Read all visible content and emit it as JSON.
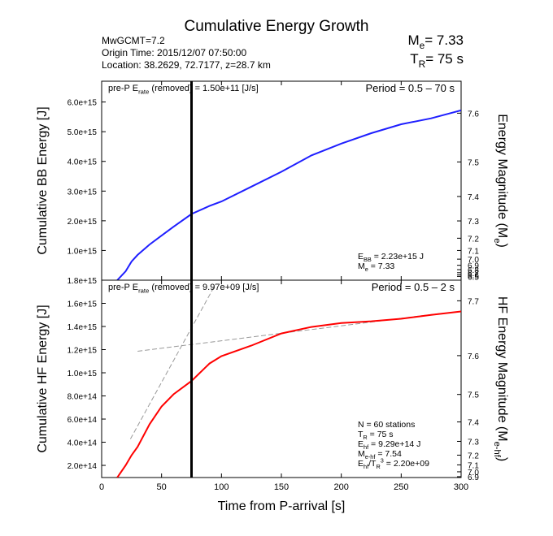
{
  "header": {
    "title": "Cumulative Energy Growth",
    "lines": [
      "MwGCMT=7.2",
      "Origin Time: 2015/12/07 07:50:00",
      "Location: 38.2629, 72.7177, z=28.7 km"
    ],
    "me": [
      {
        "text": "M"
      },
      {
        "text": "e",
        "shift": "sub"
      },
      {
        "text": "= 7.33"
      }
    ],
    "tr": [
      {
        "text": "T"
      },
      {
        "text": "R",
        "shift": "sub"
      },
      {
        "text": "= 75 s"
      }
    ]
  },
  "chart_data": [
    {
      "type": "line",
      "ylabel": [
        {
          "text": "Cumulative BB Energy [J]"
        }
      ],
      "y2label": [
        {
          "text": "Energy Magnitude (M"
        },
        {
          "text": "e",
          "shift": "sub"
        },
        {
          "text": ")"
        }
      ],
      "xlim": [
        0,
        300
      ],
      "ylim": [
        0,
        6700000000000000.0
      ],
      "yticks": [
        {
          "value": 1000000000000000.0,
          "label": "1.0e+15"
        },
        {
          "value": 2000000000000000.0,
          "label": "2.0e+15"
        },
        {
          "value": 3000000000000000.0,
          "label": "3.0e+15"
        },
        {
          "value": 4000000000000000.0,
          "label": "4.0e+15"
        },
        {
          "value": 5000000000000000.0,
          "label": "5.0e+15"
        },
        {
          "value": 6000000000000000.0,
          "label": "6.0e+15"
        }
      ],
      "y_bottom_label": "1.8e+15",
      "y2ticks": [
        7.6,
        7.5,
        7.4,
        7.3,
        7.2,
        7.1,
        {
          "value": 7,
          "label": "7.0"
        },
        6.9,
        6.8,
        6.7,
        6.6,
        6.5
      ],
      "marker_x": 75,
      "series": [
        {
          "color": "#1f1fff",
          "x": [
            13,
            20,
            25,
            30,
            40,
            50,
            60,
            75,
            90,
            100,
            125,
            150,
            175,
            200,
            225,
            250,
            275,
            300
          ],
          "values": [
            0,
            300000000000000.0,
            630000000000000.0,
            850000000000000.0,
            1200000000000000.0,
            1500000000000000.0,
            1800000000000000.0,
            2230000000000000.0,
            2500000000000000.0,
            2650000000000000.0,
            3150000000000000.0,
            3650000000000000.0,
            4200000000000000.0,
            4600000000000000.0,
            4950000000000000.0,
            5250000000000000.0,
            5450000000000000.0,
            5720000000000000.0
          ]
        }
      ],
      "rate_note": [
        {
          "text": "pre-P E"
        },
        {
          "text": "rate",
          "shift": "sub"
        },
        {
          "text": " (removed) = 1.50e+11 [J/s]"
        }
      ],
      "period": [
        {
          "text": "Period = 0.5 – 70 s"
        }
      ],
      "notes": [
        [
          {
            "text": "E"
          },
          {
            "text": "BB",
            "shift": "sub"
          },
          {
            "text": " = 2.23e+15 J"
          }
        ],
        [
          {
            "text": "M"
          },
          {
            "text": "e",
            "shift": "sub"
          },
          {
            "text": " = 7.33"
          }
        ]
      ]
    },
    {
      "type": "line",
      "ylabel": [
        {
          "text": "Cumulative HF Energy [J]"
        }
      ],
      "y2label": [
        {
          "text": "HF Energy Magnitude (M"
        },
        {
          "text": "e-hf",
          "shift": "sub"
        },
        {
          "text": ")"
        }
      ],
      "xlabel": "Time from P-arrival [s]",
      "xlim": [
        0,
        300
      ],
      "xticks": [
        0,
        50,
        100,
        150,
        200,
        250,
        300
      ],
      "ylim": [
        95000000000000.0,
        1800000000000000.0
      ],
      "yticks": [
        {
          "value": 200000000000000.0,
          "label": "2.0e+14"
        },
        {
          "value": 400000000000000.0,
          "label": "4.0e+14"
        },
        {
          "value": 600000000000000.0,
          "label": "6.0e+14"
        },
        {
          "value": 800000000000000.0,
          "label": "8.0e+14"
        },
        {
          "value": 1000000000000000.0,
          "label": "1.0e+15"
        },
        {
          "value": 1200000000000000.0,
          "label": "1.2e+15"
        },
        {
          "value": 1400000000000000.0,
          "label": "1.4e+15"
        },
        {
          "value": 1600000000000000.0,
          "label": "1.6e+15"
        }
      ],
      "y2ticks": [
        7.7,
        7.6,
        7.5,
        7.4,
        7.3,
        7.2,
        7.1,
        {
          "value": 7,
          "label": "7.0"
        },
        6.9
      ],
      "marker_x": 75,
      "series": [
        {
          "color": "#ff0000",
          "x": [
            13,
            20,
            25,
            30,
            40,
            50,
            60,
            75,
            90,
            100,
            125,
            150,
            175,
            200,
            225,
            250,
            275,
            300
          ],
          "values": [
            95000000000000.0,
            200000000000000.0,
            288000000000000.0,
            360000000000000.0,
            555000000000000.0,
            709000000000000.0,
            814000000000000.0,
            929000000000000.0,
            1080000000000000.0,
            1144000000000000.0,
            1235000000000000.0,
            1340000000000000.0,
            1396000000000000.0,
            1430000000000000.0,
            1445000000000000.0,
            1467000000000000.0,
            1500000000000000.0,
            1530000000000000.0
          ]
        }
      ],
      "fit_lines": [
        {
          "color": "#999999",
          "x": [
            24,
            95
          ],
          "values": [
            428000000000000.0,
            1765000000000000.0
          ]
        },
        {
          "color": "#999999",
          "x": [
            30,
            285
          ],
          "values": [
            1186000000000000.0,
            1516000000000000.0
          ]
        }
      ],
      "rate_note": [
        {
          "text": "pre-P E"
        },
        {
          "text": "rate",
          "shift": "sub"
        },
        {
          "text": " (removed) = 9.97e+09 [J/s]"
        }
      ],
      "period": [
        {
          "text": "Period = 0.5 – 2 s"
        }
      ],
      "notes": [
        [
          {
            "text": "N = 60 stations"
          }
        ],
        [
          {
            "text": "T"
          },
          {
            "text": "R",
            "shift": "sub"
          },
          {
            "text": " = 75  s"
          }
        ],
        [
          {
            "text": "E"
          },
          {
            "text": "hf",
            "shift": "sub"
          },
          {
            "text": " = 9.29e+14 J"
          }
        ],
        [
          {
            "text": "M"
          },
          {
            "text": "e-hf",
            "shift": "sub"
          },
          {
            "text": " = 7.54"
          }
        ],
        [
          {
            "text": "E"
          },
          {
            "text": "hf",
            "shift": "sub"
          },
          {
            "text": "/T"
          },
          {
            "text": "R",
            "shift": "sub"
          },
          {
            "text": "3",
            "shift": "sup"
          },
          {
            "text": " =  2.20e+09"
          }
        ]
      ]
    }
  ]
}
